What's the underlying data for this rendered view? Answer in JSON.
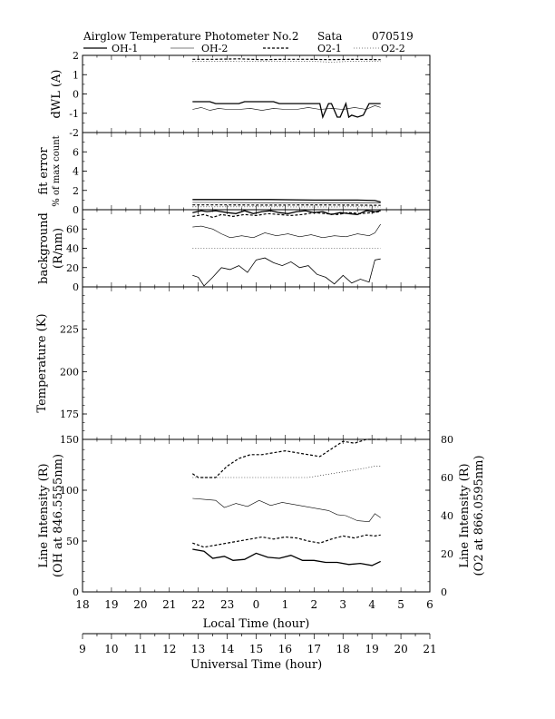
{
  "header": {
    "title": "Airglow Temperature Photometer No.2",
    "site": "Sata",
    "date": "070519"
  },
  "legend": [
    "OH-1",
    "OH-2",
    "O2-1",
    "O2-2"
  ],
  "colors": {
    "line": "#000000",
    "background": "#ffffff"
  },
  "chart_data": [
    {
      "type": "line",
      "ylabel": "dWL  (A)",
      "ylim": [
        -2,
        2
      ],
      "yticks": [
        "2",
        "1",
        "0",
        "-1",
        "-2"
      ],
      "series": [
        {
          "name": "OH-1",
          "x": [
            12.8,
            13.4,
            13.6,
            14.4,
            14.6,
            15.6,
            15.8,
            16.6,
            16.8,
            17.2,
            17.3,
            17.5,
            17.6,
            17.8,
            17.9,
            18.1,
            18.2,
            18.3,
            18.5,
            18.7,
            18.9,
            19.2,
            19.3
          ],
          "values": [
            -0.4,
            -0.4,
            -0.5,
            -0.5,
            -0.4,
            -0.4,
            -0.5,
            -0.5,
            -0.5,
            -0.5,
            -1.2,
            -0.5,
            -0.5,
            -1.2,
            -1.2,
            -0.5,
            -1.2,
            -1.1,
            -1.2,
            -1.1,
            -0.5,
            -0.5,
            -0.5
          ]
        },
        {
          "name": "OH-2",
          "x": [
            12.8,
            13.1,
            13.4,
            13.7,
            14.0,
            14.4,
            14.8,
            15.2,
            15.6,
            16.0,
            16.4,
            16.8,
            17.2,
            17.6,
            18.0,
            18.4,
            18.8,
            19.1,
            19.3
          ],
          "values": [
            -0.8,
            -0.7,
            -0.85,
            -0.75,
            -0.8,
            -0.8,
            -0.75,
            -0.85,
            -0.75,
            -0.8,
            -0.8,
            -0.7,
            -0.8,
            -0.75,
            -0.8,
            -0.7,
            -0.8,
            -0.6,
            -0.7
          ]
        },
        {
          "name": "O2-1",
          "x": [
            12.8,
            13.6,
            14.4,
            15.2,
            16.0,
            16.8,
            17.6,
            18.4,
            19.3
          ],
          "values": [
            1.8,
            1.8,
            1.82,
            1.78,
            1.8,
            1.8,
            1.78,
            1.8,
            1.78
          ]
        },
        {
          "name": "O2-2",
          "x": [
            12.8,
            13.6,
            14.4,
            15.2,
            16.0,
            16.8,
            17.6,
            18.4,
            19.3
          ],
          "values": [
            1.68,
            1.7,
            1.68,
            1.7,
            1.68,
            1.7,
            1.65,
            1.7,
            1.68
          ]
        }
      ]
    },
    {
      "type": "line",
      "ylabel": "fit error",
      "ylabel2": "% of max count",
      "ylim": [
        0,
        8
      ],
      "yticks": [
        "6",
        "4",
        "2",
        "0"
      ],
      "series": [
        {
          "name": "OH-1",
          "x": [
            12.8,
            14.0,
            15.5,
            17.0,
            18.5,
            19.1,
            19.3
          ],
          "values": [
            1.05,
            1.05,
            1.05,
            1.0,
            1.0,
            0.95,
            0.8
          ]
        },
        {
          "name": "OH-2",
          "x": [
            12.8,
            14.0,
            15.5,
            17.0,
            18.5,
            19.3
          ],
          "values": [
            0.75,
            0.75,
            0.72,
            0.72,
            0.72,
            0.7
          ]
        },
        {
          "name": "O2-1",
          "x": [
            12.8,
            14.0,
            15.5,
            17.0,
            18.5,
            19.3
          ],
          "values": [
            0.5,
            0.5,
            0.48,
            0.5,
            0.48,
            0.45
          ]
        },
        {
          "name": "O2-2",
          "x": [
            12.8,
            14.0,
            15.5,
            17.0,
            18.5,
            19.3
          ],
          "values": [
            0.3,
            0.3,
            0.3,
            0.28,
            0.3,
            0.28
          ]
        }
      ]
    },
    {
      "type": "line",
      "ylabel": "background",
      "ylabel2": "(R/nm)",
      "ylim": [
        0,
        80
      ],
      "yticks": [
        "60",
        "40",
        "20",
        "0"
      ],
      "series": [
        {
          "name": "OH-1",
          "x": [
            12.8,
            13.1,
            13.3,
            13.6,
            14.0,
            14.3,
            14.6,
            14.9,
            15.2,
            15.5,
            15.8,
            16.1,
            16.4,
            16.7,
            17.0,
            17.3,
            17.6,
            17.9,
            18.2,
            18.5,
            18.8,
            19.1,
            19.3
          ],
          "values": [
            77,
            79,
            78,
            79,
            77,
            76,
            79,
            76,
            78,
            79,
            77,
            76,
            78,
            79,
            77,
            78,
            75,
            77,
            76,
            75,
            79,
            78,
            79
          ]
        },
        {
          "name": "OH-2",
          "x": [
            12.8,
            13.1,
            13.5,
            13.8,
            14.1,
            14.5,
            14.9,
            15.3,
            15.7,
            16.1,
            16.5,
            16.9,
            17.3,
            17.7,
            18.1,
            18.5,
            18.9,
            19.1,
            19.3
          ],
          "values": [
            62,
            63,
            60,
            55,
            51,
            53,
            51,
            56,
            53,
            55,
            52,
            54,
            51,
            53,
            52,
            55,
            53,
            56,
            65
          ]
        },
        {
          "name": "O2-1",
          "x": [
            12.8,
            13.2,
            13.5,
            13.8,
            14.2,
            14.6,
            15.0,
            15.4,
            15.8,
            16.2,
            16.6,
            17.0,
            17.4,
            17.8,
            18.2,
            18.6,
            19.0,
            19.3
          ],
          "values": [
            73,
            75,
            72,
            75,
            73,
            75,
            74,
            76,
            75,
            74,
            75,
            77,
            76,
            75,
            77,
            76,
            77,
            78
          ]
        },
        {
          "name": "O2-2",
          "x": [
            12.8,
            19.3
          ],
          "values": [
            40,
            40
          ]
        },
        {
          "name": "OH-1 background",
          "x": [
            12.8,
            13.0,
            13.2,
            13.5,
            13.8,
            14.1,
            14.4,
            14.7,
            15.0,
            15.3,
            15.6,
            15.9,
            16.2,
            16.5,
            16.8,
            17.1,
            17.4,
            17.7,
            18.0,
            18.3,
            18.6,
            18.9,
            19.1,
            19.3
          ],
          "values": [
            12,
            10,
            1,
            10,
            20,
            18,
            22,
            15,
            28,
            30,
            25,
            22,
            26,
            20,
            22,
            13,
            10,
            3,
            12,
            4,
            8,
            5,
            28,
            29
          ]
        }
      ]
    },
    {
      "type": "line",
      "ylabel": "Temperature (K)",
      "ylim": [
        160,
        250
      ],
      "yticks": [
        "225",
        "200",
        "175"
      ],
      "series": []
    },
    {
      "type": "line",
      "ylabel": "Line Intensity (R)",
      "ylabel2": "(OH at 846.5555nm)",
      "y2label": "Line Intensity (R)",
      "y2label2": "(O2 at 866.0595nm)",
      "ylim": [
        0,
        150
      ],
      "y2lim": [
        0,
        80
      ],
      "yticks": [
        "150",
        "100",
        "50",
        "0"
      ],
      "y2ticks": [
        "80",
        "60",
        "40",
        "20",
        "0"
      ],
      "xlabel": "Local Time (hour)",
      "xticks": [
        "18",
        "19",
        "20",
        "21",
        "22",
        "23",
        "0",
        "1",
        "2",
        "3",
        "4",
        "5",
        "6"
      ],
      "x2label": "Universal Time (hour)",
      "x2ticks": [
        "9",
        "10",
        "11",
        "12",
        "13",
        "14",
        "15",
        "16",
        "17",
        "18",
        "19",
        "20",
        "21"
      ],
      "series": [
        {
          "name": "OH-1",
          "axis": "left",
          "x": [
            12.8,
            13.2,
            13.5,
            13.9,
            14.2,
            14.6,
            15.0,
            15.4,
            15.8,
            16.2,
            16.6,
            17.0,
            17.4,
            17.8,
            18.2,
            18.6,
            19.0,
            19.3
          ],
          "values": [
            42,
            40,
            33,
            35,
            31,
            32,
            38,
            34,
            33,
            36,
            31,
            31,
            29,
            29,
            27,
            28,
            26,
            30
          ]
        },
        {
          "name": "OH-2",
          "axis": "left",
          "x": [
            12.8,
            13.2,
            13.6,
            13.9,
            14.3,
            14.7,
            15.1,
            15.5,
            15.9,
            16.3,
            16.7,
            17.1,
            17.5,
            17.8,
            18.1,
            18.5,
            18.9,
            19.1,
            19.3
          ],
          "values": [
            92,
            91,
            90,
            83,
            87,
            84,
            90,
            85,
            88,
            86,
            84,
            82,
            80,
            76,
            75,
            70,
            69,
            77,
            73
          ]
        },
        {
          "name": "O2-1",
          "axis": "right",
          "x": [
            12.8,
            13.0,
            13.6,
            14.0,
            14.4,
            14.8,
            15.2,
            15.6,
            16.0,
            16.4,
            16.8,
            17.2,
            17.6,
            18.0,
            18.4,
            18.8,
            19.0,
            19.3
          ],
          "values": [
            62,
            60,
            60,
            66,
            70,
            72,
            72,
            73,
            74,
            73,
            72,
            71,
            75,
            79,
            78,
            80,
            80,
            80
          ]
        },
        {
          "name": "O2-2",
          "axis": "right",
          "x": [
            12.8,
            13.2,
            13.6,
            14.0,
            14.4,
            14.8,
            15.2,
            15.6,
            16.0,
            16.4,
            16.8,
            17.2,
            17.6,
            18.0,
            18.4,
            18.8,
            19.1,
            19.3
          ],
          "values": [
            60,
            60,
            60,
            60,
            60,
            60,
            60,
            60,
            60,
            60,
            60,
            61,
            62,
            63,
            64,
            65,
            66,
            66
          ]
        },
        {
          "name": "OH dashed",
          "axis": "left",
          "x": [
            12.8,
            13.2,
            13.6,
            14.0,
            14.4,
            14.8,
            15.2,
            15.6,
            16.0,
            16.4,
            16.8,
            17.2,
            17.6,
            18.0,
            18.4,
            18.8,
            19.1,
            19.3
          ],
          "values": [
            48,
            44,
            46,
            48,
            50,
            52,
            54,
            52,
            54,
            53,
            50,
            48,
            52,
            55,
            53,
            56,
            55,
            56
          ]
        }
      ]
    }
  ]
}
